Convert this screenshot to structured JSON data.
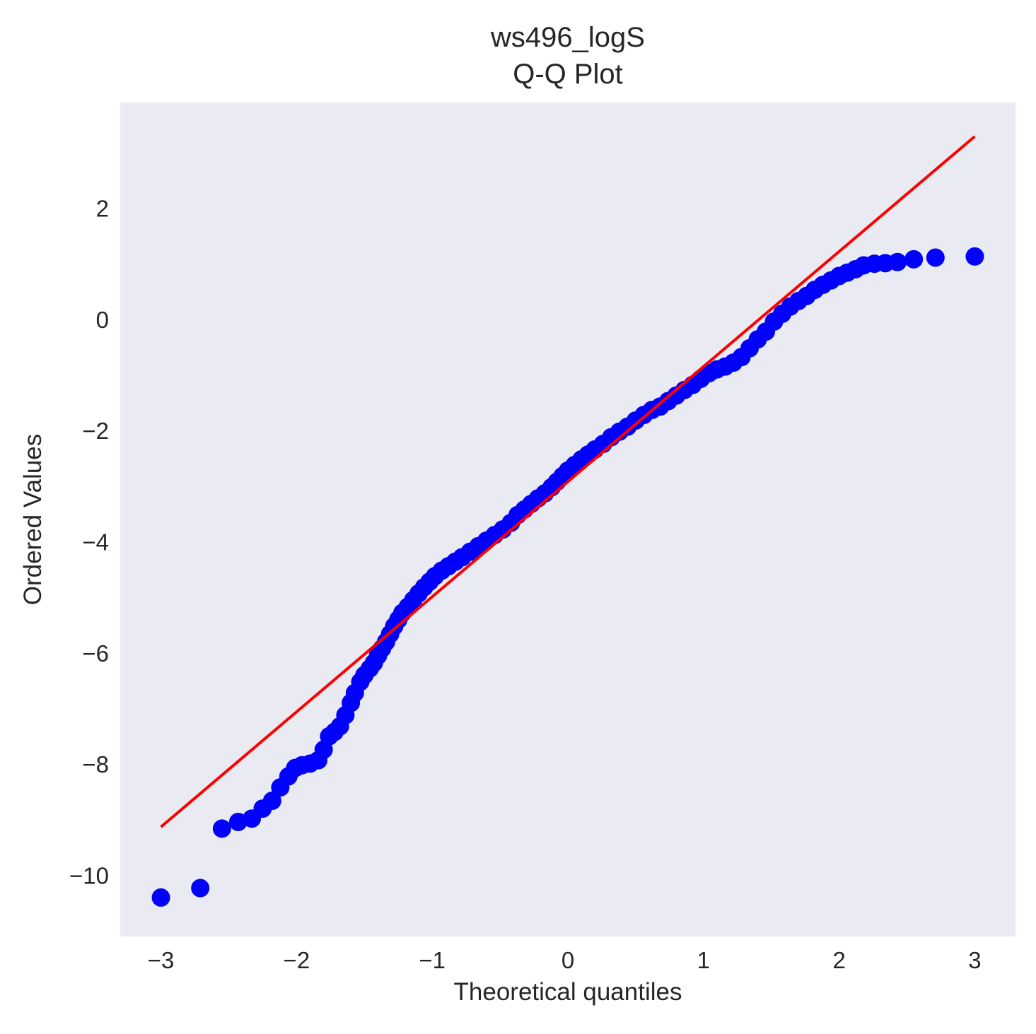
{
  "chart_data": {
    "type": "scatter",
    "title": "ws496_logS",
    "subtitle": "Q-Q Plot",
    "xlabel": "Theoretical quantiles",
    "ylabel": "Ordered Values",
    "xlim": [
      -3.3,
      3.3
    ],
    "ylim": [
      -11.1,
      3.9
    ],
    "xticks": [
      -3,
      -2,
      -1,
      0,
      1,
      2,
      3
    ],
    "xtick_labels": [
      "−3",
      "−2",
      "−1",
      "0",
      "1",
      "2",
      "3"
    ],
    "yticks": [
      -10,
      -8,
      -6,
      -4,
      -2,
      0,
      2
    ],
    "ytick_labels": [
      "−10",
      "−8",
      "−6",
      "−4",
      "−2",
      "0",
      "2"
    ],
    "grid": false,
    "background": "#EAEAF2",
    "series": [
      {
        "kind": "points",
        "color": "#0000FF",
        "points": [
          [
            -3.0,
            -10.4
          ],
          [
            -2.71,
            -10.23
          ],
          [
            -2.55,
            -9.16
          ],
          [
            -2.43,
            -9.04
          ],
          [
            -2.33,
            -8.98
          ],
          [
            -2.25,
            -8.8
          ],
          [
            -2.18,
            -8.66
          ],
          [
            -2.12,
            -8.42
          ],
          [
            -2.06,
            -8.22
          ],
          [
            -2.01,
            -8.07
          ],
          [
            -1.96,
            -8.02
          ],
          [
            -1.9,
            -7.99
          ],
          [
            -1.84,
            -7.93
          ],
          [
            -1.8,
            -7.74
          ],
          [
            -1.76,
            -7.5
          ],
          [
            -1.72,
            -7.42
          ],
          [
            -1.68,
            -7.32
          ],
          [
            -1.64,
            -7.12
          ],
          [
            -1.6,
            -6.9
          ],
          [
            -1.57,
            -6.72
          ],
          [
            -1.53,
            -6.52
          ],
          [
            -1.5,
            -6.4
          ],
          [
            -1.46,
            -6.28
          ],
          [
            -1.43,
            -6.18
          ],
          [
            -1.4,
            -6.05
          ],
          [
            -1.37,
            -5.92
          ],
          [
            -1.34,
            -5.8
          ],
          [
            -1.31,
            -5.66
          ],
          [
            -1.28,
            -5.52
          ],
          [
            -1.25,
            -5.4
          ],
          [
            -1.22,
            -5.28
          ],
          [
            -1.18,
            -5.17
          ],
          [
            -1.14,
            -5.05
          ],
          [
            -1.1,
            -4.93
          ],
          [
            -1.06,
            -4.82
          ],
          [
            -1.02,
            -4.72
          ],
          [
            -0.98,
            -4.62
          ],
          [
            -0.93,
            -4.52
          ],
          [
            -0.88,
            -4.44
          ],
          [
            -0.83,
            -4.36
          ],
          [
            -0.78,
            -4.28
          ],
          [
            -0.72,
            -4.18
          ],
          [
            -0.66,
            -4.08
          ],
          [
            -0.6,
            -3.98
          ],
          [
            -0.54,
            -3.88
          ],
          [
            -0.48,
            -3.78
          ],
          [
            -0.42,
            -3.66
          ],
          [
            -0.37,
            -3.52
          ],
          [
            -0.32,
            -3.42
          ],
          [
            -0.27,
            -3.32
          ],
          [
            -0.22,
            -3.22
          ],
          [
            -0.17,
            -3.13
          ],
          [
            -0.12,
            -3.02
          ],
          [
            -0.08,
            -2.92
          ],
          [
            -0.04,
            -2.82
          ],
          [
            0.0,
            -2.72
          ],
          [
            0.05,
            -2.62
          ],
          [
            0.1,
            -2.52
          ],
          [
            0.15,
            -2.43
          ],
          [
            0.2,
            -2.34
          ],
          [
            0.26,
            -2.24
          ],
          [
            0.32,
            -2.12
          ],
          [
            0.38,
            -2.02
          ],
          [
            0.44,
            -1.93
          ],
          [
            0.5,
            -1.82
          ],
          [
            0.56,
            -1.72
          ],
          [
            0.62,
            -1.63
          ],
          [
            0.68,
            -1.57
          ],
          [
            0.74,
            -1.47
          ],
          [
            0.8,
            -1.37
          ],
          [
            0.86,
            -1.27
          ],
          [
            0.92,
            -1.18
          ],
          [
            0.98,
            -1.07
          ],
          [
            1.04,
            -0.97
          ],
          [
            1.1,
            -0.9
          ],
          [
            1.16,
            -0.85
          ],
          [
            1.22,
            -0.78
          ],
          [
            1.28,
            -0.68
          ],
          [
            1.34,
            -0.52
          ],
          [
            1.4,
            -0.36
          ],
          [
            1.46,
            -0.22
          ],
          [
            1.52,
            -0.04
          ],
          [
            1.58,
            0.1
          ],
          [
            1.64,
            0.23
          ],
          [
            1.7,
            0.33
          ],
          [
            1.76,
            0.42
          ],
          [
            1.82,
            0.53
          ],
          [
            1.88,
            0.62
          ],
          [
            1.94,
            0.7
          ],
          [
            2.0,
            0.78
          ],
          [
            2.06,
            0.84
          ],
          [
            2.12,
            0.9
          ],
          [
            2.18,
            0.97
          ],
          [
            2.26,
            1.0
          ],
          [
            2.34,
            1.01
          ],
          [
            2.43,
            1.03
          ],
          [
            2.55,
            1.08
          ],
          [
            2.71,
            1.11
          ],
          [
            3.0,
            1.13
          ]
        ]
      },
      {
        "kind": "line",
        "color": "#FF0000",
        "points": [
          [
            -3.0,
            -9.13
          ],
          [
            3.0,
            3.29
          ]
        ]
      }
    ]
  }
}
